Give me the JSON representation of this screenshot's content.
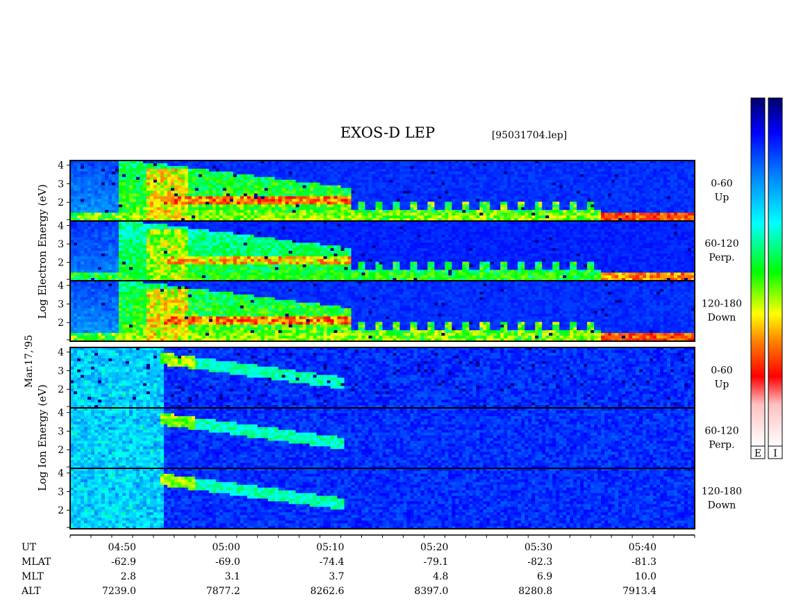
{
  "chart_data": {
    "type": "heatmap",
    "title": "EXOS-D LEP",
    "file_id": "[95031704.lep]",
    "date_label": "Mar.17,'95",
    "y_scale": "log",
    "y_ticks": [
      "4",
      "3",
      "2"
    ],
    "colorbar_labels": [
      "E",
      "I"
    ],
    "groups": [
      {
        "name": "electron",
        "ylabel_words": [
          "Log",
          "Electron",
          "Energy",
          "(eV)"
        ],
        "panels": [
          {
            "pitch": "0-60",
            "direction": "Up"
          },
          {
            "pitch": "60-120",
            "direction": "Perp."
          },
          {
            "pitch": "120-180",
            "direction": "Down"
          }
        ]
      },
      {
        "name": "ion",
        "ylabel_words": [
          "Log",
          "Ion",
          "Energy",
          "(eV)"
        ],
        "panels": [
          {
            "pitch": "0-60",
            "direction": "Up"
          },
          {
            "pitch": "60-120",
            "direction": "Perp."
          },
          {
            "pitch": "120-180",
            "direction": "Down"
          }
        ]
      }
    ],
    "x_time_range": [
      "04:45",
      "05:45"
    ],
    "orbit_table": {
      "row_labels": [
        "UT",
        "MLAT",
        "MLT",
        "ALT"
      ],
      "columns": [
        {
          "UT": "04:50",
          "MLAT": "-62.9",
          "MLT": "2.8",
          "ALT": "7239.0"
        },
        {
          "UT": "05:00",
          "MLAT": "-69.0",
          "MLT": "3.1",
          "ALT": "7877.2"
        },
        {
          "UT": "05:10",
          "MLAT": "-74.4",
          "MLT": "3.7",
          "ALT": "8262.6"
        },
        {
          "UT": "05:20",
          "MLAT": "-79.1",
          "MLT": "4.8",
          "ALT": "8397.0"
        },
        {
          "UT": "05:30",
          "MLAT": "-82.3",
          "MLT": "6.9",
          "ALT": "8280.8"
        },
        {
          "UT": "05:40",
          "MLAT": "-81.3",
          "MLT": "10.0",
          "ALT": "7913.4"
        }
      ]
    },
    "colors": {
      "background": "#001a9e",
      "scale": [
        "#ffffff",
        "#ff0000",
        "#ff8000",
        "#ffff00",
        "#00ff00",
        "#00ffff",
        "#0080ff",
        "#0000ff",
        "#00006a"
      ]
    }
  }
}
